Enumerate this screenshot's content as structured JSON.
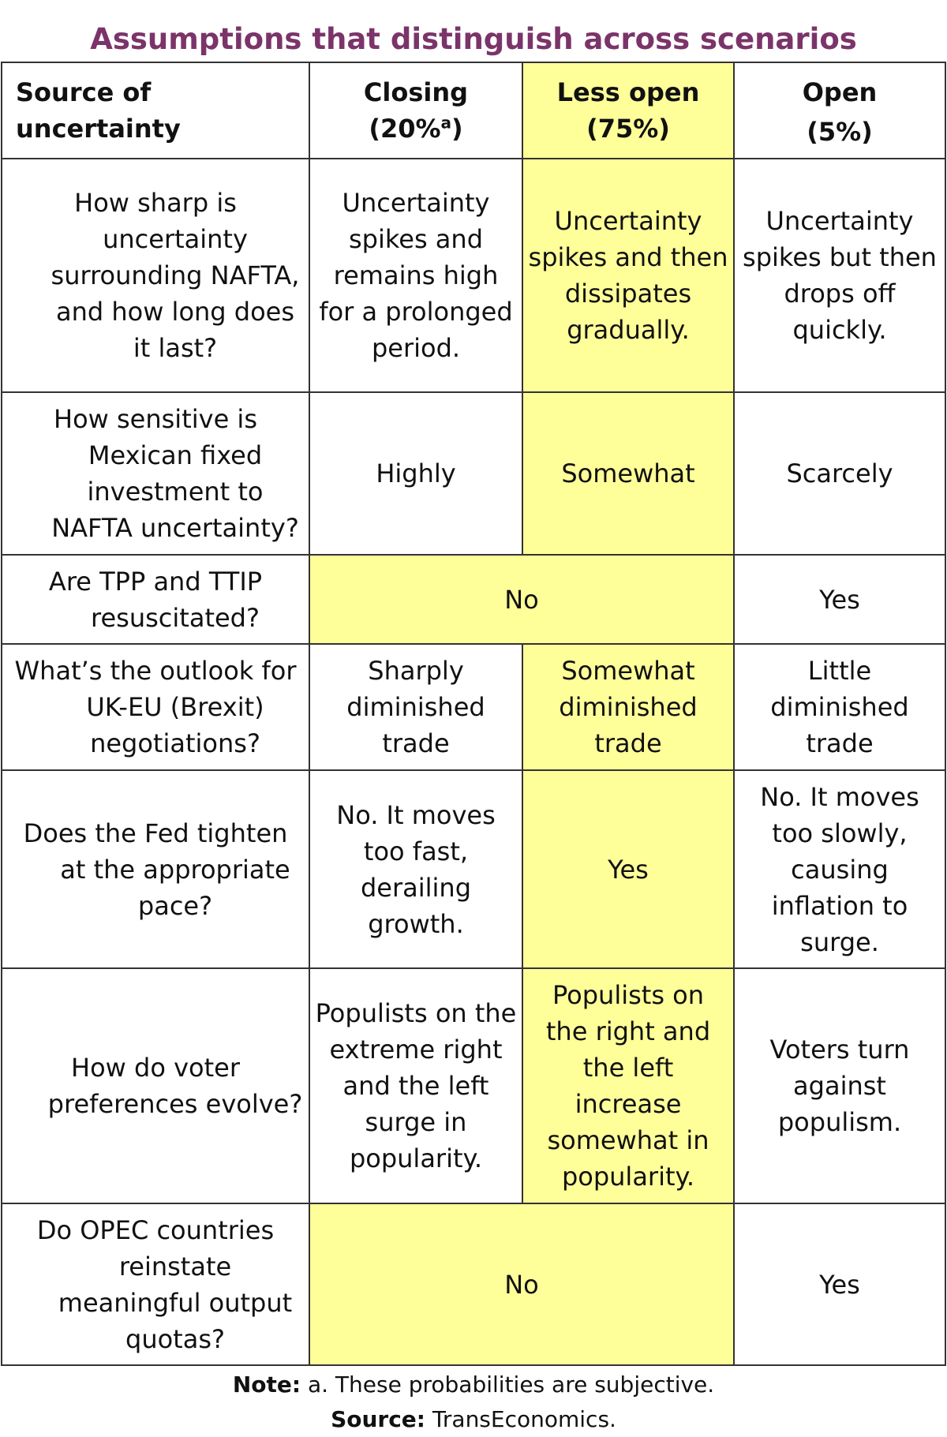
{
  "title": "Assumptions that distinguish across scenarios",
  "table": {
    "header": {
      "source": "Source of uncertainty",
      "closing": {
        "label": "Closing",
        "prob_open": "(20%",
        "prob_sup": "a",
        "prob_close": ")"
      },
      "less_open": {
        "label": "Less open",
        "prob": "(75%)"
      },
      "open": {
        "label": "Open",
        "prob": "(5%)"
      }
    },
    "rows": [
      {
        "question": "How sharp is uncertainty surrounding NAFTA, and how long does it last?",
        "closing": "Uncertainty spikes and remains high for a prolonged period.",
        "less_open": "Uncertainty spikes and then dissipates gradually.",
        "open": "Uncertainty spikes but then drops off quickly."
      },
      {
        "question": "How sensitive is Mexican fixed investment to NAFTA uncertainty?",
        "closing": "Highly",
        "less_open": "Somewhat",
        "open": "Scarcely"
      },
      {
        "question": "Are TPP and TTIP resuscitated?",
        "closing_less_open": "No",
        "open": "Yes"
      },
      {
        "question": "What’s the outlook for UK-EU (Brexit) negotiations?",
        "closing": "Sharply diminished trade",
        "less_open": "Somewhat diminished trade",
        "open": "Little diminished trade"
      },
      {
        "question": "Does the Fed tighten at the appropriate pace?",
        "closing": "No. It moves too fast, derailing growth.",
        "less_open": "Yes",
        "open": "No. It moves too slowly, causing inflation to surge."
      },
      {
        "question": "How do voter preferences evolve?",
        "closing": "Populists on the extreme right and the left surge in popularity.",
        "less_open": "Populists on the right and the left increase somewhat in popularity.",
        "open": "Voters turn against populism."
      },
      {
        "question": "Do OPEC countries reinstate meaningful output quotas?",
        "closing_less_open": "No",
        "open": "Yes"
      }
    ]
  },
  "note": {
    "label": "Note:",
    "text": "a. These probabilities are subjective."
  },
  "source": {
    "label": "Source:",
    "text": "TransEconomics."
  },
  "colors": {
    "title": "#7b3469",
    "highlight": "#ffff99",
    "border": "#333333"
  }
}
